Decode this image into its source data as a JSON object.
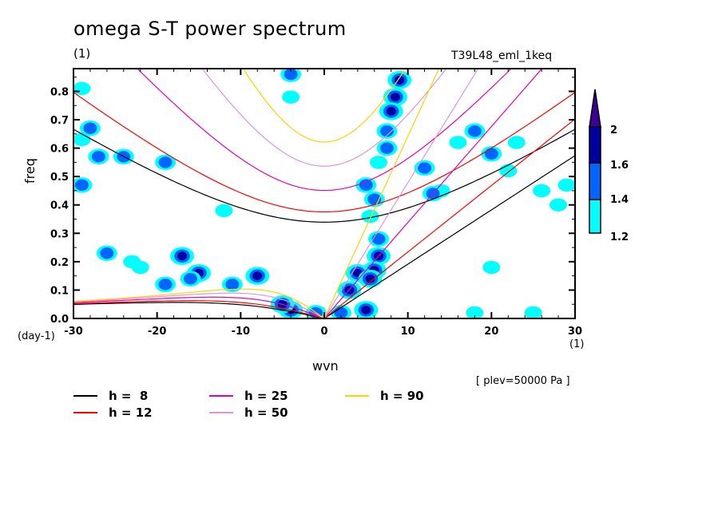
{
  "chart_data": {
    "type": "heatmap",
    "title": "omega S-T power spectrum",
    "subtitle_unit": "(1)",
    "experiment_label": "T39L48_eml_1keq",
    "xlabel": "wvn",
    "xunit": "(1)",
    "ylabel": "freq",
    "yunit": "(day-1)",
    "xlim": [
      -30,
      30
    ],
    "ylim": [
      0.0,
      0.88
    ],
    "xticks": [
      "-30",
      "-20",
      "-10",
      "0",
      "10",
      "20",
      "30"
    ],
    "xtick_values": [
      -30,
      -20,
      -10,
      0,
      10,
      20,
      30
    ],
    "yticks": [
      "0.0",
      "0.1",
      "0.2",
      "0.3",
      "0.4",
      "0.5",
      "0.6",
      "0.7",
      "0.8"
    ],
    "ytick_values": [
      0.0,
      0.1,
      0.2,
      0.3,
      0.4,
      0.5,
      0.6,
      0.7,
      0.8
    ],
    "level_annotation": "[ plev=50000 Pa ]",
    "colorbar": {
      "levels": [
        "1.2",
        "1.4",
        "1.6",
        "2"
      ],
      "colors": [
        "#00ffff",
        "#0064ff",
        "#0000a0",
        "#3c0096"
      ],
      "extend": "max"
    },
    "dispersion_curves": [
      {
        "label": "h =  8",
        "h": 8,
        "color": "#000000"
      },
      {
        "label": "h = 12",
        "h": 12,
        "color": "#ff0000"
      },
      {
        "label": "h = 25",
        "h": 25,
        "color": "#e600b4"
      },
      {
        "label": "h = 50",
        "h": 50,
        "color": "#dc96dc"
      },
      {
        "label": "h = 90",
        "h": 90,
        "color": "#ffd200"
      }
    ],
    "power_blobs": [
      {
        "x": 9,
        "y": 0.84,
        "level": 3
      },
      {
        "x": 8.5,
        "y": 0.78,
        "level": 3
      },
      {
        "x": 8,
        "y": 0.73,
        "level": 3
      },
      {
        "x": 7.5,
        "y": 0.66,
        "level": 2
      },
      {
        "x": 7.5,
        "y": 0.6,
        "level": 2
      },
      {
        "x": 6.5,
        "y": 0.55,
        "level": 1
      },
      {
        "x": 5,
        "y": 0.47,
        "level": 2
      },
      {
        "x": 6,
        "y": 0.42,
        "level": 2
      },
      {
        "x": 5.5,
        "y": 0.36,
        "level": 1
      },
      {
        "x": 6.5,
        "y": 0.28,
        "level": 2
      },
      {
        "x": 6.5,
        "y": 0.22,
        "level": 3
      },
      {
        "x": 6,
        "y": 0.17,
        "level": 3
      },
      {
        "x": 4,
        "y": 0.16,
        "level": 3
      },
      {
        "x": 5.5,
        "y": 0.14,
        "level": 3
      },
      {
        "x": 3,
        "y": 0.1,
        "level": 3
      },
      {
        "x": 5,
        "y": 0.03,
        "level": 3
      },
      {
        "x": 2,
        "y": 0.02,
        "level": 2
      },
      {
        "x": -1,
        "y": 0.02,
        "level": 2
      },
      {
        "x": -4,
        "y": 0.03,
        "level": 3
      },
      {
        "x": -5,
        "y": 0.05,
        "level": 3
      },
      {
        "x": -8,
        "y": 0.15,
        "level": 3
      },
      {
        "x": -11,
        "y": 0.12,
        "level": 2
      },
      {
        "x": -15,
        "y": 0.16,
        "level": 3
      },
      {
        "x": -16,
        "y": 0.14,
        "level": 2
      },
      {
        "x": -19,
        "y": 0.12,
        "level": 2
      },
      {
        "x": -22,
        "y": 0.18,
        "level": 1
      },
      {
        "x": -17,
        "y": 0.22,
        "level": 3
      },
      {
        "x": -23,
        "y": 0.2,
        "level": 1
      },
      {
        "x": -26,
        "y": 0.23,
        "level": 2
      },
      {
        "x": -29,
        "y": 0.47,
        "level": 2
      },
      {
        "x": -27,
        "y": 0.57,
        "level": 2
      },
      {
        "x": -24,
        "y": 0.57,
        "level": 2
      },
      {
        "x": -19,
        "y": 0.55,
        "level": 2
      },
      {
        "x": -29,
        "y": 0.63,
        "level": 1
      },
      {
        "x": -29,
        "y": 0.81,
        "level": 1
      },
      {
        "x": -28,
        "y": 0.67,
        "level": 2
      },
      {
        "x": -12,
        "y": 0.38,
        "level": 1
      },
      {
        "x": -4,
        "y": 0.78,
        "level": 1
      },
      {
        "x": -4,
        "y": 0.86,
        "level": 2
      },
      {
        "x": 14,
        "y": 0.45,
        "level": 1
      },
      {
        "x": 12,
        "y": 0.53,
        "level": 2
      },
      {
        "x": 16,
        "y": 0.62,
        "level": 1
      },
      {
        "x": 18,
        "y": 0.66,
        "level": 2
      },
      {
        "x": 20,
        "y": 0.58,
        "level": 2
      },
      {
        "x": 22,
        "y": 0.52,
        "level": 1
      },
      {
        "x": 23,
        "y": 0.62,
        "level": 1
      },
      {
        "x": 26,
        "y": 0.45,
        "level": 1
      },
      {
        "x": 28,
        "y": 0.4,
        "level": 1
      },
      {
        "x": 29,
        "y": 0.47,
        "level": 1
      },
      {
        "x": 25,
        "y": 0.02,
        "level": 1
      },
      {
        "x": 18,
        "y": 0.02,
        "level": 1
      },
      {
        "x": 20,
        "y": 0.18,
        "level": 1
      },
      {
        "x": 13,
        "y": 0.44,
        "level": 2
      }
    ]
  }
}
